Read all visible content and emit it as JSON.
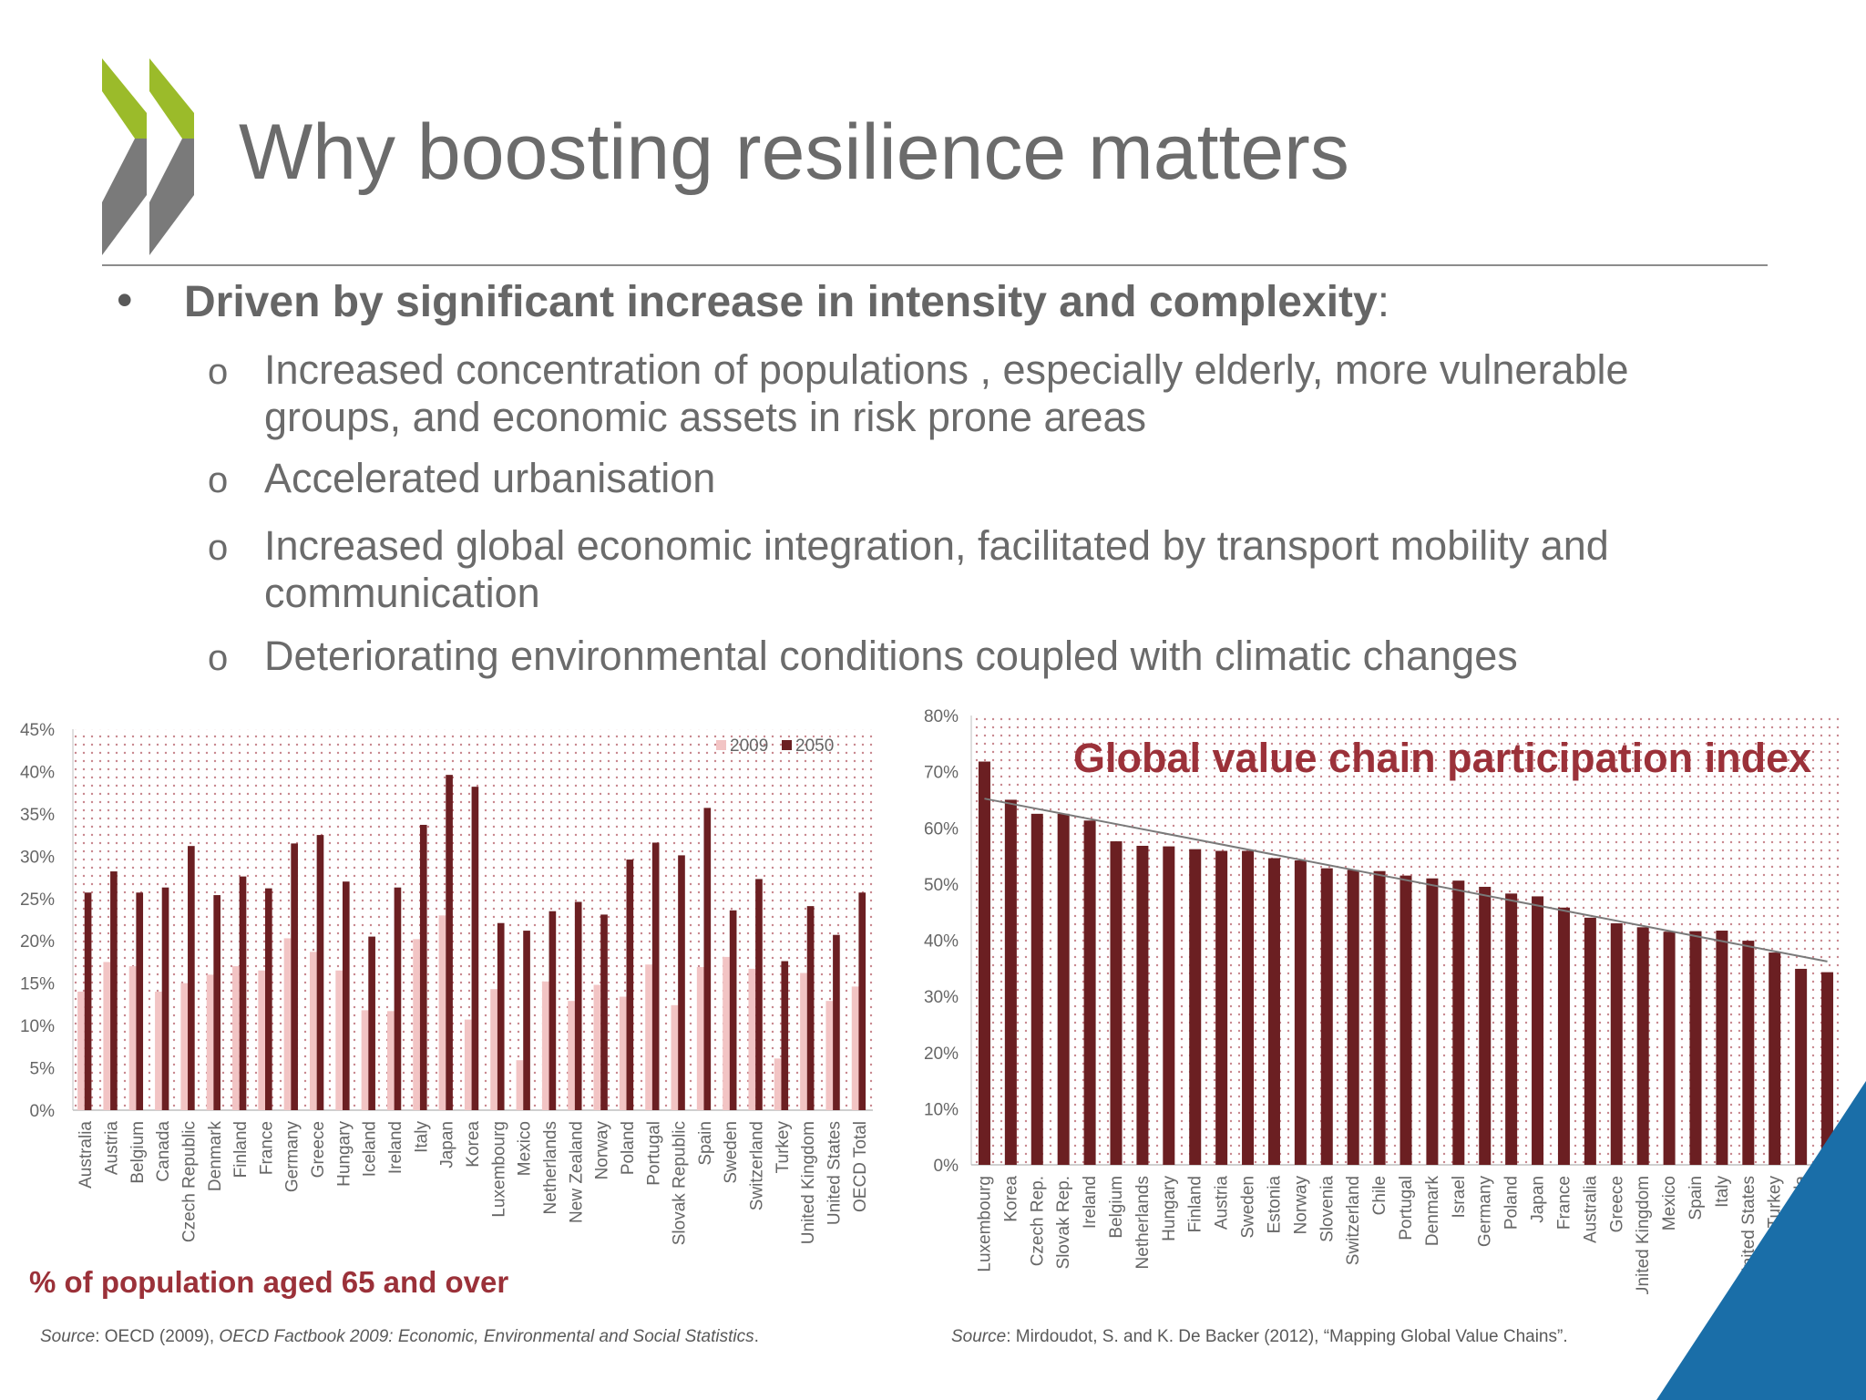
{
  "header": {
    "title": "Why boosting resilience matters"
  },
  "bullets": {
    "main_bold": "Driven by significant increase in intensity and complexity",
    "main_colon": ":",
    "marker_main": "•",
    "marker_sub": "o",
    "items": [
      "Increased concentration of populations , especially elderly, more vulnerable groups, and economic assets in risk prone areas",
      "Accelerated urbanisation",
      "Increased global economic integration, facilitated by transport mobility and communication",
      "Deteriorating environmental conditions coupled with climatic changes"
    ]
  },
  "colors": {
    "accent_red": "#9b3139",
    "bar_dark": "#6b1f22",
    "bar_light": "#f2c4c4",
    "logo_green": "#9bbb2a",
    "logo_gray": "#7a7a7a",
    "corner_blue": "#1a6ea8"
  },
  "chart_data": [
    {
      "type": "bar",
      "title": "% of population aged 65 and over",
      "xlabel": "",
      "ylabel": "",
      "ylim": [
        0,
        45
      ],
      "yticks": [
        "0%",
        "5%",
        "10%",
        "15%",
        "20%",
        "25%",
        "30%",
        "35%",
        "40%",
        "45%"
      ],
      "legend_position": "top-right",
      "categories": [
        "Australia",
        "Austria",
        "Belgium",
        "Canada",
        "Czech Republic",
        "Denmark",
        "Finland",
        "France",
        "Germany",
        "Greece",
        "Hungary",
        "Iceland",
        "Ireland",
        "Italy",
        "Japan",
        "Korea",
        "Luxembourg",
        "Mexico",
        "Netherlands",
        "New Zealand",
        "Norway",
        "Poland",
        "Portugal",
        "Slovak Republic",
        "Spain",
        "Sweden",
        "Switzerland",
        "Turkey",
        "United Kingdom",
        "United States",
        "OECD Total"
      ],
      "series": [
        {
          "name": "2009",
          "color": "#f2c4c4",
          "values": [
            14,
            17.5,
            17,
            14,
            15,
            16,
            17,
            16.5,
            20.3,
            18.7,
            16.5,
            11.8,
            11.7,
            20.2,
            23,
            10.7,
            14.3,
            5.9,
            15.2,
            12.9,
            14.8,
            13.4,
            17.2,
            12.4,
            16.9,
            18.1,
            16.7,
            6.1,
            16.2,
            12.9,
            14.6
          ]
        },
        {
          "name": "2050",
          "color": "#6b1f22",
          "values": [
            25.7,
            28.2,
            25.7,
            26.3,
            31.2,
            25.4,
            27.6,
            26.2,
            31.5,
            32.5,
            27,
            20.5,
            26.3,
            33.7,
            39.6,
            38.2,
            22.1,
            21.2,
            23.5,
            24.6,
            23.1,
            29.6,
            31.6,
            30.1,
            35.7,
            23.6,
            27.3,
            17.6,
            24.1,
            20.7,
            25.7
          ]
        }
      ]
    },
    {
      "type": "bar",
      "title": "Global value chain participation index",
      "xlabel": "",
      "ylabel": "",
      "ylim": [
        0,
        80
      ],
      "yticks": [
        "0%",
        "10%",
        "20%",
        "30%",
        "40%",
        "50%",
        "60%",
        "70%",
        "80%"
      ],
      "trendline": {
        "start": 65.2,
        "end": 36.2
      },
      "categories": [
        "Luxembourg",
        "Korea",
        "Czech Rep.",
        "Slovak Rep.",
        "Ireland",
        "Belgium",
        "Netherlands",
        "Hungary",
        "Finland",
        "Austria",
        "Sweden",
        "Estonia",
        "Norway",
        "Slovenia",
        "Switzerland",
        "Chile",
        "Portugal",
        "Denmark",
        "Israel",
        "Germany",
        "Poland",
        "Japan",
        "France",
        "Australia",
        "Greece",
        "United Kingdom",
        "Mexico",
        "Spain",
        "Italy",
        "United States",
        "Turkey",
        "Canada",
        "New Zealand"
      ],
      "series": [
        {
          "name": "GVC participation",
          "color": "#6b1f22",
          "values": [
            71.8,
            65,
            62.5,
            62.5,
            61.3,
            57.6,
            56.8,
            56.7,
            56.2,
            55.9,
            55.9,
            54.6,
            54.2,
            52.8,
            52.5,
            52.3,
            51.5,
            51,
            50.6,
            49.5,
            48.3,
            47.8,
            45.8,
            44,
            43,
            42.3,
            41.5,
            41.6,
            41.7,
            39.9,
            37.8,
            34.9,
            34.3
          ]
        }
      ]
    }
  ],
  "sources": {
    "left": {
      "label": "Source",
      "pre": ": OECD (2009), ",
      "italic": "OECD Factbook 2009: Economic, Environmental and Social Statistics",
      "post": "."
    },
    "right": {
      "label": "Source",
      "pre": ": Mirdoudot, S. and K. De Backer (2012), “Mapping Global Value Chains”."
    }
  }
}
